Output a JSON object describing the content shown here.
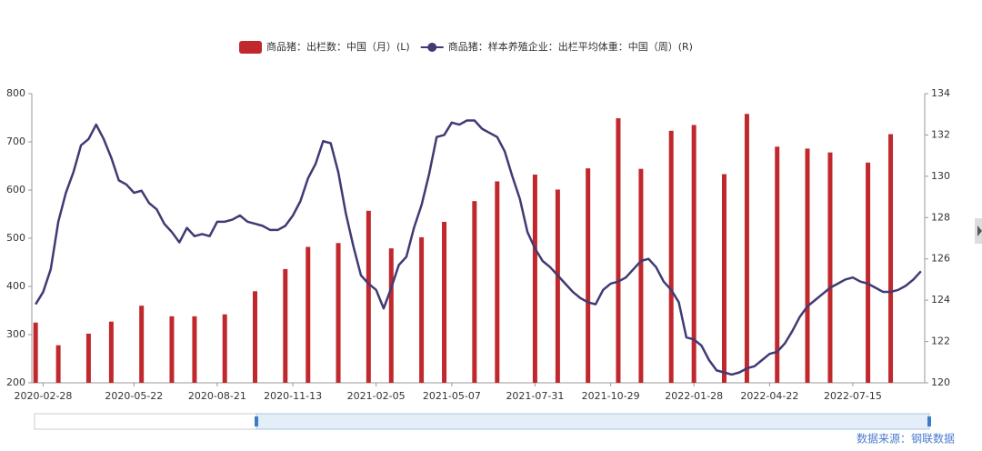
{
  "chart_data": {
    "type": "bar",
    "categories": [
      null,
      "2020-02-28",
      null,
      null,
      null,
      null,
      null,
      null,
      null,
      null,
      null,
      null,
      null,
      "2020-05-22",
      null,
      null,
      null,
      null,
      null,
      null,
      null,
      null,
      null,
      null,
      "2020-08-21",
      null,
      null,
      null,
      null,
      null,
      null,
      null,
      null,
      null,
      "2020-11-13",
      null,
      null,
      null,
      null,
      null,
      null,
      null,
      null,
      null,
      null,
      "2021-02-05",
      null,
      null,
      null,
      null,
      null,
      null,
      null,
      null,
      null,
      "2021-05-07",
      null,
      null,
      null,
      null,
      null,
      null,
      null,
      null,
      null,
      null,
      "2021-07-31",
      null,
      null,
      null,
      null,
      null,
      null,
      null,
      null,
      null,
      "2021-10-29",
      null,
      null,
      null,
      null,
      null,
      null,
      null,
      null,
      null,
      null,
      "2022-01-28",
      null,
      null,
      null,
      null,
      null,
      null,
      null,
      null,
      null,
      "2022-04-22",
      null,
      null,
      null,
      null,
      null,
      null,
      null,
      null,
      null,
      null,
      "2022-07-15",
      null,
      null,
      null,
      null,
      null,
      null,
      null,
      null,
      null
    ],
    "series": [
      {
        "name": "商品猪：出栏数：中国（月）(L)",
        "type": "bar",
        "color": "#c0282d",
        "values": [
          325,
          null,
          null,
          278,
          null,
          null,
          null,
          302,
          null,
          null,
          327,
          null,
          null,
          null,
          360,
          null,
          null,
          null,
          338,
          null,
          null,
          338,
          null,
          null,
          null,
          342,
          null,
          null,
          null,
          390,
          null,
          null,
          null,
          436,
          null,
          null,
          482,
          null,
          null,
          null,
          490,
          null,
          null,
          null,
          557,
          null,
          null,
          479,
          null,
          null,
          null,
          502,
          null,
          null,
          534,
          null,
          null,
          null,
          577,
          null,
          null,
          618,
          null,
          null,
          null,
          null,
          632,
          null,
          null,
          601,
          null,
          null,
          null,
          645,
          null,
          null,
          null,
          749,
          null,
          null,
          644,
          null,
          null,
          null,
          723,
          null,
          null,
          735,
          null,
          null,
          null,
          633,
          null,
          null,
          758,
          null,
          null,
          null,
          690,
          null,
          null,
          null,
          686,
          null,
          null,
          678,
          null,
          null,
          null,
          null,
          657,
          null,
          null,
          716,
          null,
          null,
          null,
          null
        ]
      },
      {
        "name": "商品猪：样本养殖企业：出栏平均体重：中国（周）(R)",
        "type": "line",
        "axis": "y2",
        "color": "#3f3b74",
        "values": [
          123.8,
          124.4,
          125.5,
          127.8,
          129.2,
          130.2,
          131.5,
          131.8,
          132.5,
          131.8,
          130.9,
          129.8,
          129.6,
          129.2,
          129.3,
          128.7,
          128.4,
          127.7,
          127.3,
          126.8,
          127.5,
          127.1,
          127.2,
          127.1,
          127.8,
          127.8,
          127.9,
          128.1,
          127.8,
          127.7,
          127.6,
          127.4,
          127.4,
          127.6,
          128.1,
          128.8,
          129.9,
          130.6,
          131.7,
          131.6,
          130.2,
          128.2,
          126.6,
          125.2,
          124.8,
          124.5,
          123.6,
          124.6,
          125.7,
          126.1,
          127.5,
          128.6,
          130.1,
          131.9,
          132,
          132.6,
          132.5,
          132.7,
          132.7,
          132.3,
          132.1,
          131.9,
          131.2,
          130,
          128.9,
          127.3,
          126.5,
          125.9,
          125.6,
          125.2,
          124.8,
          124.4,
          124.1,
          123.9,
          123.8,
          124.5,
          124.8,
          124.9,
          125.1,
          125.5,
          125.9,
          126,
          125.6,
          124.9,
          124.5,
          123.9,
          122.2,
          122.1,
          121.8,
          121.1,
          120.6,
          120.5,
          120.4,
          120.5,
          120.7,
          120.8,
          121.1,
          121.4,
          121.5,
          121.9,
          122.5,
          123.2,
          123.7,
          124,
          124.3,
          124.6,
          124.8,
          125,
          125.1,
          124.9,
          124.8,
          124.6,
          124.4,
          124.4,
          124.5,
          124.7,
          125,
          125.4
        ]
      }
    ],
    "ylim": [
      200,
      800
    ],
    "yticks": [
      200,
      300,
      400,
      500,
      600,
      700,
      800
    ],
    "y2lim": [
      120,
      134
    ],
    "y2ticks": [
      120,
      122,
      124,
      126,
      128,
      130,
      132,
      134
    ],
    "source": "数据来源：钢联数据"
  }
}
